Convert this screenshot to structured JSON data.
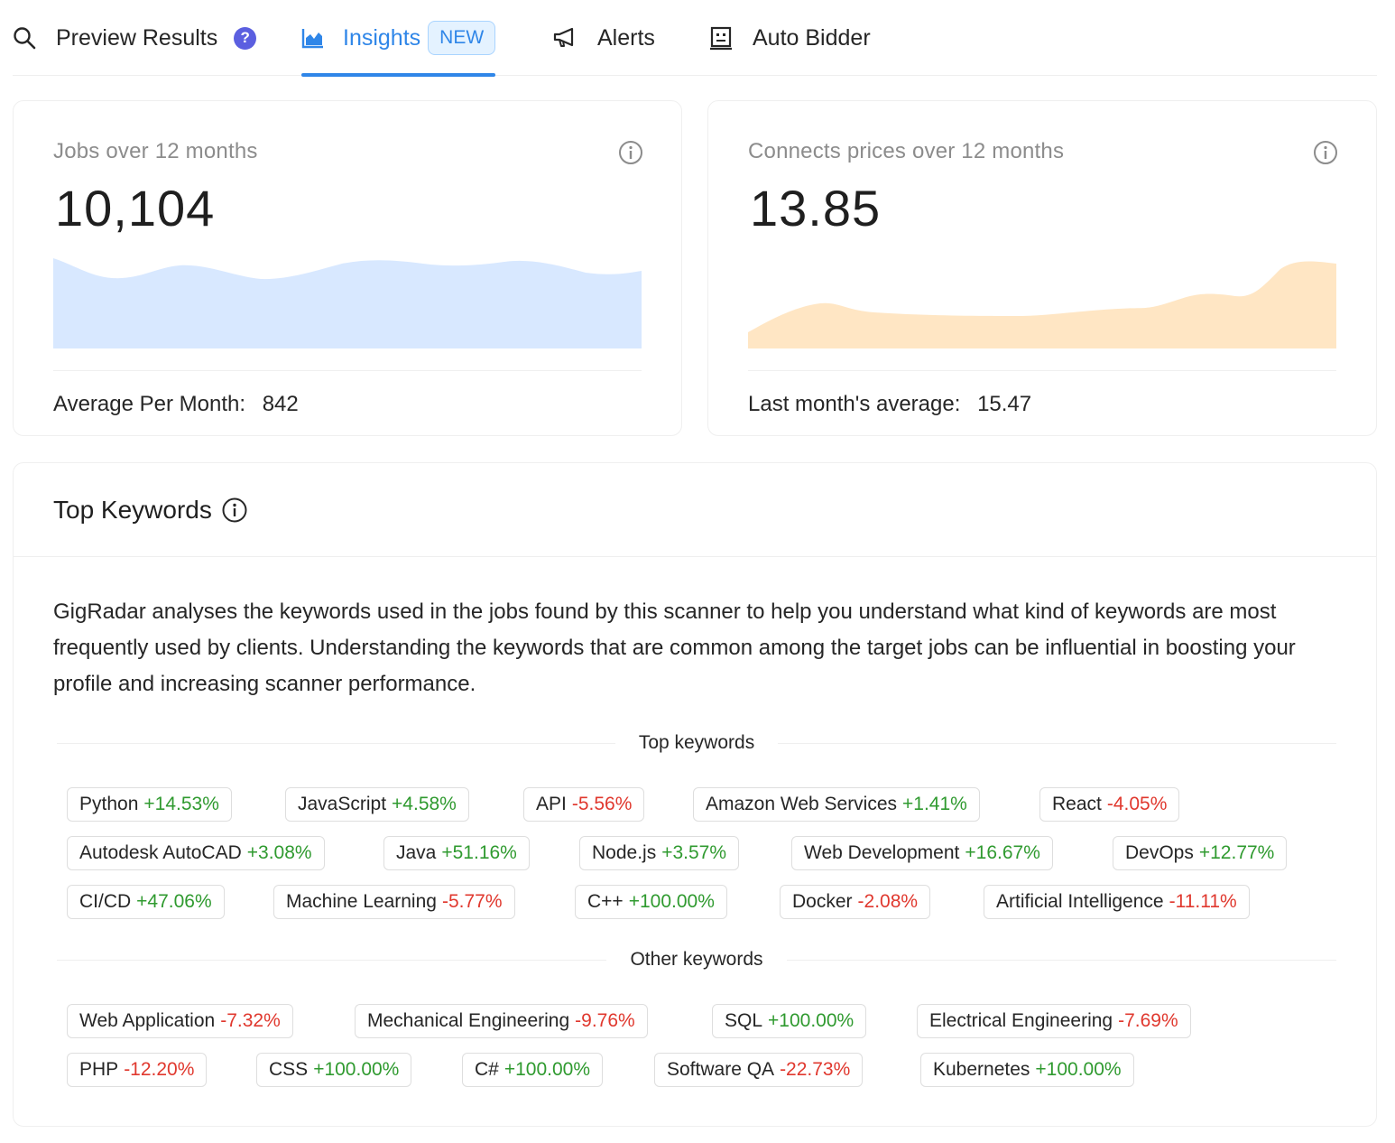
{
  "tabs": [
    {
      "label": "Preview Results",
      "icon": "search-icon"
    },
    {
      "label": "Insights",
      "icon": "area-chart-icon",
      "badge": "NEW",
      "active": true
    },
    {
      "label": "Alerts",
      "icon": "megaphone-icon"
    },
    {
      "label": "Auto Bidder",
      "icon": "robot-icon"
    }
  ],
  "help_badge": "?",
  "jobs_card": {
    "title": "Jobs over 12 months",
    "value": "10,104",
    "footer_label": "Average Per Month:",
    "footer_value": "842",
    "fill_color": "#d8e8ff"
  },
  "connects_card": {
    "title": "Connects prices over 12 months",
    "value": "13.85",
    "footer_label": "Last month's average:",
    "footer_value": "15.47",
    "fill_color": "#ffe6c4"
  },
  "keywords": {
    "title": "Top Keywords",
    "description": "GigRadar analyses the keywords used in the jobs found by this scanner to help you understand what kind of keywords are most frequently used by clients. Understanding the keywords that are common among the target jobs can be influential in boosting your profile and increasing scanner performance.",
    "top_label": "Top keywords",
    "other_label": "Other keywords",
    "top": [
      {
        "name": "Python",
        "change": "+14.53%"
      },
      {
        "name": "JavaScript",
        "change": "+4.58%"
      },
      {
        "name": "API",
        "change": "-5.56%"
      },
      {
        "name": "Amazon Web Services",
        "change": "+1.41%"
      },
      {
        "name": "React",
        "change": "-4.05%"
      },
      {
        "name": "Autodesk AutoCAD",
        "change": "+3.08%"
      },
      {
        "name": "Java",
        "change": "+51.16%"
      },
      {
        "name": "Node.js",
        "change": "+3.57%"
      },
      {
        "name": "Web Development",
        "change": "+16.67%"
      },
      {
        "name": "DevOps",
        "change": "+12.77%"
      },
      {
        "name": "CI/CD",
        "change": "+47.06%"
      },
      {
        "name": "Machine Learning",
        "change": "-5.77%"
      },
      {
        "name": "C++",
        "change": "+100.00%"
      },
      {
        "name": "Docker",
        "change": "-2.08%"
      },
      {
        "name": "Artificial Intelligence",
        "change": "-11.11%"
      }
    ],
    "other": [
      {
        "name": "Web Application",
        "change": "-7.32%"
      },
      {
        "name": "Mechanical Engineering",
        "change": "-9.76%"
      },
      {
        "name": "SQL",
        "change": "+100.00%"
      },
      {
        "name": "Electrical Engineering",
        "change": "-7.69%"
      },
      {
        "name": "PHP",
        "change": "-12.20%"
      },
      {
        "name": "CSS",
        "change": "+100.00%"
      },
      {
        "name": "C#",
        "change": "+100.00%"
      },
      {
        "name": "Software QA",
        "change": "-22.73%"
      },
      {
        "name": "Kubernetes",
        "change": "+100.00%"
      }
    ]
  }
}
